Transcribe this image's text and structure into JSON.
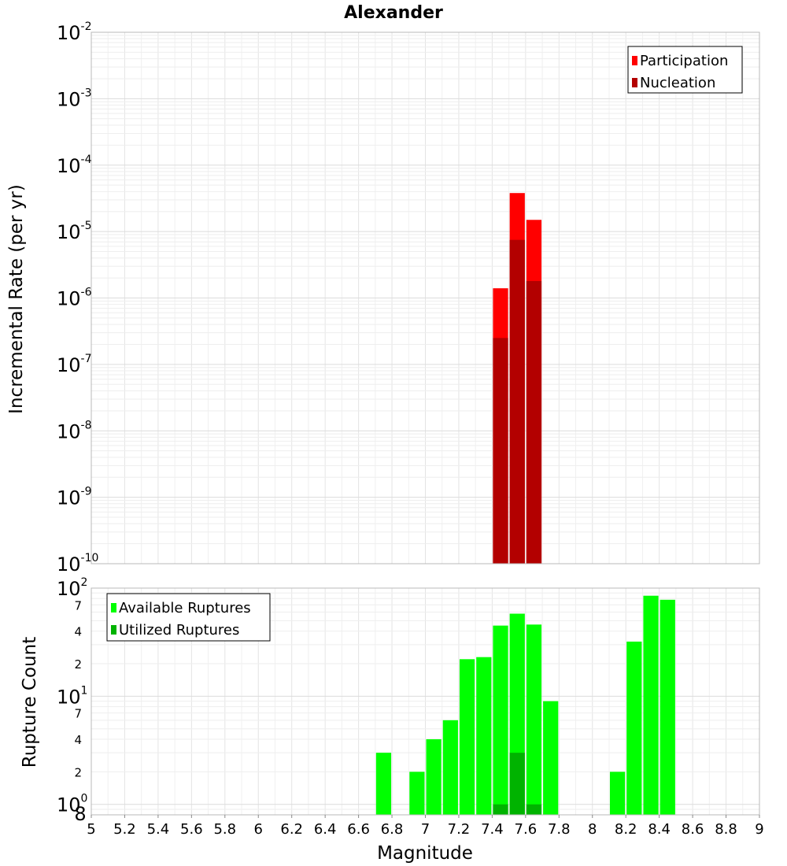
{
  "chart_data": [
    {
      "type": "bar",
      "title": "Alexander",
      "ylabel": "Incremental Rate (per yr)",
      "xlabel": "",
      "xlim": [
        5,
        9
      ],
      "ylim": [
        1e-10,
        0.01
      ],
      "yscale": "log",
      "grid": true,
      "bin_width": 0.1,
      "y_exponents": [
        -10,
        -9,
        -8,
        -7,
        -6,
        -5,
        -4,
        -3,
        -2
      ],
      "legend": {
        "placement": "top-right"
      },
      "colors": {
        "Participation": "#ff0000",
        "Nucleation": "#b30000"
      },
      "series": [
        {
          "name": "Participation",
          "x": [
            7.45,
            7.55,
            7.65
          ],
          "values": [
            1.4e-06,
            3.8e-05,
            1.5e-05
          ]
        },
        {
          "name": "Nucleation",
          "x": [
            7.45,
            7.55,
            7.65
          ],
          "values": [
            2.5e-07,
            7.5e-06,
            1.8e-06
          ]
        }
      ]
    },
    {
      "type": "bar",
      "title": "",
      "ylabel": "Rupture Count",
      "xlabel": "Magnitude",
      "xlim": [
        5,
        9
      ],
      "xticks": [
        "5",
        "5.2",
        "5.4",
        "5.6",
        "5.8",
        "6",
        "6.2",
        "6.4",
        "6.6",
        "6.8",
        "7",
        "7.2",
        "7.4",
        "7.6",
        "7.8",
        "8",
        "8.2",
        "8.4",
        "8.6",
        "8.8",
        "9"
      ],
      "ylim": [
        0.8,
        100
      ],
      "yscale": "log",
      "grid": true,
      "bin_width": 0.1,
      "y_major_exponents": [
        0,
        1,
        2
      ],
      "y_minor_labels": [
        "2",
        "4",
        "7",
        "2",
        "4",
        "7"
      ],
      "y_bottom_label": "8",
      "legend": {
        "placement": "top-left"
      },
      "colors": {
        "Available Ruptures": "#00ff00",
        "Utilized Ruptures": "#00b300"
      },
      "series": [
        {
          "name": "Available Ruptures",
          "x": [
            6.75,
            6.95,
            7.05,
            7.15,
            7.25,
            7.35,
            7.45,
            7.55,
            7.65,
            7.75,
            8.15,
            8.25,
            8.35,
            8.45
          ],
          "values": [
            3,
            2,
            4,
            6,
            22,
            23,
            45,
            58,
            46,
            9,
            2,
            32,
            85,
            78
          ]
        },
        {
          "name": "Utilized Ruptures",
          "x": [
            7.45,
            7.55,
            7.65
          ],
          "values": [
            1,
            3,
            1
          ]
        }
      ]
    }
  ]
}
